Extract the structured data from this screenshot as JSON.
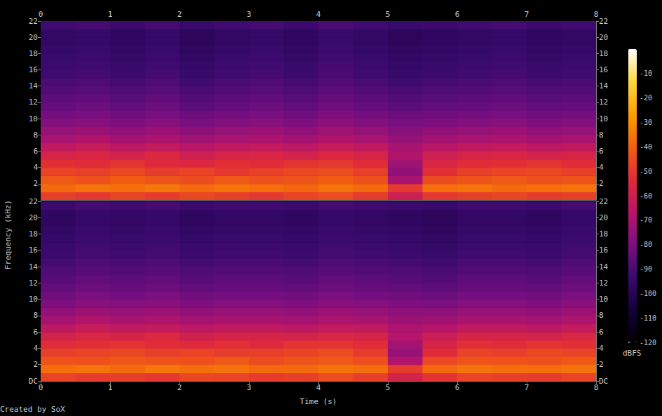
{
  "chart_data": {
    "type": "heatmap",
    "x_label": "Time (s)",
    "y_label": "Frequency (kHz)",
    "credit": "Created by SoX",
    "xlim": [
      0,
      8
    ],
    "xticks": [
      0,
      1,
      2,
      3,
      4,
      5,
      6,
      7,
      8
    ],
    "ylim": [
      0,
      22
    ],
    "time_bins": [
      0,
      0.5,
      1,
      1.5,
      2,
      2.5,
      3,
      3.5,
      4,
      4.5,
      5,
      5.5,
      6,
      6.5,
      7,
      7.5,
      8
    ],
    "freq_bins": [
      0,
      1,
      2,
      3,
      4,
      5,
      6,
      7,
      8,
      9,
      10,
      11,
      12,
      13,
      14,
      15,
      16,
      17,
      18,
      19,
      20,
      21,
      22
    ],
    "colorbar": {
      "label": "dBFS",
      "range": [
        -120,
        0
      ],
      "ticks": [
        -120,
        -110,
        -100,
        -90,
        -80,
        -70,
        -60,
        -50,
        -40,
        -30,
        -20,
        -10
      ]
    },
    "channels": [
      {
        "yticks": [
          2,
          4,
          6,
          8,
          10,
          12,
          14,
          16,
          18,
          20,
          22
        ],
        "cells": [
          [
            -48,
            -50,
            -47,
            -49,
            -46,
            -48,
            -50,
            -47,
            -45,
            -49,
            -60,
            -50,
            -48,
            -47,
            -49,
            -48
          ],
          [
            -38,
            -36,
            -37,
            -35,
            -38,
            -36,
            -37,
            -39,
            -36,
            -38,
            -50,
            -37,
            -36,
            -38,
            -37,
            -36
          ],
          [
            -42,
            -44,
            -41,
            -43,
            -45,
            -42,
            -44,
            -43,
            -41,
            -44,
            -70,
            -45,
            -43,
            -42,
            -44,
            -43
          ],
          [
            -47,
            -48,
            -46,
            -49,
            -47,
            -50,
            -48,
            -46,
            -45,
            -48,
            -75,
            -52,
            -48,
            -47,
            -46,
            -48
          ],
          [
            -52,
            -53,
            -51,
            -54,
            -55,
            -52,
            -53,
            -51,
            -50,
            -53,
            -72,
            -56,
            -53,
            -52,
            -51,
            -53
          ],
          [
            -57,
            -56,
            -58,
            -55,
            -60,
            -57,
            -56,
            -58,
            -55,
            -57,
            -68,
            -60,
            -57,
            -56,
            -58,
            -57
          ],
          [
            -64,
            -62,
            -65,
            -63,
            -66,
            -64,
            -63,
            -65,
            -62,
            -64,
            -70,
            -66,
            -64,
            -63,
            -65,
            -64
          ],
          [
            -70,
            -68,
            -71,
            -69,
            -72,
            -70,
            -69,
            -71,
            -68,
            -70,
            -74,
            -71,
            -70,
            -69,
            -71,
            -70
          ],
          [
            -74,
            -73,
            -75,
            -73,
            -76,
            -74,
            -73,
            -75,
            -72,
            -74,
            -77,
            -75,
            -74,
            -73,
            -75,
            -74
          ],
          [
            -78,
            -77,
            -79,
            -77,
            -80,
            -78,
            -77,
            -79,
            -76,
            -78,
            -80,
            -79,
            -78,
            -77,
            -79,
            -78
          ],
          [
            -81,
            -80,
            -82,
            -80,
            -83,
            -81,
            -80,
            -82,
            -79,
            -81,
            -83,
            -82,
            -81,
            -80,
            -82,
            -81
          ],
          [
            -84,
            -83,
            -85,
            -83,
            -86,
            -84,
            -83,
            -85,
            -82,
            -84,
            -86,
            -85,
            -84,
            -83,
            -85,
            -84
          ],
          [
            -86,
            -85,
            -87,
            -85,
            -88,
            -86,
            -85,
            -87,
            -84,
            -86,
            -88,
            -87,
            -86,
            -85,
            -87,
            -86
          ],
          [
            -88,
            -87,
            -89,
            -87,
            -90,
            -88,
            -87,
            -89,
            -86,
            -88,
            -90,
            -89,
            -88,
            -87,
            -89,
            -88
          ],
          [
            -90,
            -89,
            -91,
            -89,
            -92,
            -90,
            -89,
            -91,
            -88,
            -90,
            -92,
            -91,
            -90,
            -89,
            -91,
            -90
          ],
          [
            -92,
            -91,
            -93,
            -91,
            -94,
            -92,
            -91,
            -93,
            -90,
            -92,
            -94,
            -93,
            -92,
            -91,
            -93,
            -92
          ],
          [
            -93,
            -92,
            -94,
            -92,
            -95,
            -93,
            -92,
            -94,
            -91,
            -93,
            -95,
            -94,
            -93,
            -92,
            -94,
            -93
          ],
          [
            -94,
            -93,
            -95,
            -93,
            -96,
            -94,
            -93,
            -95,
            -92,
            -94,
            -96,
            -95,
            -94,
            -93,
            -95,
            -94
          ],
          [
            -95,
            -94,
            -96,
            -94,
            -97,
            -95,
            -94,
            -96,
            -93,
            -95,
            -97,
            -96,
            -95,
            -94,
            -96,
            -95
          ],
          [
            -96,
            -95,
            -97,
            -95,
            -98,
            -96,
            -95,
            -97,
            -94,
            -96,
            -98,
            -97,
            -96,
            -95,
            -97,
            -96
          ],
          [
            -96,
            -95,
            -97,
            -95,
            -98,
            -96,
            -95,
            -97,
            -94,
            -96,
            -98,
            -97,
            -96,
            -95,
            -97,
            -96
          ],
          [
            -92,
            -91,
            -93,
            -91,
            -94,
            -92,
            -91,
            -93,
            -90,
            -92,
            -94,
            -93,
            -92,
            -91,
            -93,
            -92
          ]
        ]
      },
      {
        "yticks": [
          {
            "value": 0,
            "label": "DC"
          },
          2,
          4,
          6,
          8,
          10,
          12,
          14,
          16,
          18,
          20,
          22
        ],
        "cells": [
          [
            -47,
            -49,
            -48,
            -50,
            -46,
            -47,
            -49,
            -48,
            -45,
            -48,
            -58,
            -51,
            -47,
            -48,
            -49,
            -47
          ],
          [
            -37,
            -36,
            -38,
            -35,
            -37,
            -36,
            -38,
            -38,
            -36,
            -37,
            -49,
            -38,
            -36,
            -37,
            -37,
            -36
          ],
          [
            -43,
            -44,
            -42,
            -43,
            -44,
            -42,
            -45,
            -43,
            -42,
            -44,
            -68,
            -46,
            -43,
            -43,
            -44,
            -42
          ],
          [
            -48,
            -47,
            -46,
            -48,
            -47,
            -49,
            -48,
            -47,
            -45,
            -49,
            -74,
            -53,
            -47,
            -48,
            -46,
            -47
          ],
          [
            -53,
            -52,
            -51,
            -53,
            -54,
            -52,
            -54,
            -51,
            -51,
            -53,
            -71,
            -57,
            -52,
            -53,
            -51,
            -52
          ],
          [
            -58,
            -56,
            -57,
            -55,
            -59,
            -57,
            -57,
            -58,
            -56,
            -57,
            -67,
            -61,
            -57,
            -57,
            -58,
            -56
          ],
          [
            -65,
            -62,
            -64,
            -63,
            -65,
            -64,
            -64,
            -65,
            -63,
            -64,
            -69,
            -67,
            -64,
            -64,
            -65,
            -63
          ],
          [
            -71,
            -68,
            -70,
            -69,
            -71,
            -70,
            -70,
            -71,
            -69,
            -70,
            -73,
            -72,
            -70,
            -70,
            -71,
            -69
          ],
          [
            -75,
            -73,
            -74,
            -73,
            -75,
            -74,
            -74,
            -75,
            -73,
            -74,
            -76,
            -76,
            -74,
            -74,
            -75,
            -73
          ],
          [
            -79,
            -77,
            -78,
            -77,
            -79,
            -78,
            -78,
            -79,
            -77,
            -78,
            -79,
            -80,
            -78,
            -78,
            -79,
            -77
          ],
          [
            -82,
            -80,
            -81,
            -80,
            -82,
            -81,
            -81,
            -82,
            -80,
            -81,
            -82,
            -83,
            -81,
            -81,
            -82,
            -80
          ],
          [
            -85,
            -83,
            -84,
            -83,
            -85,
            -84,
            -84,
            -85,
            -83,
            -84,
            -85,
            -86,
            -84,
            -84,
            -85,
            -83
          ],
          [
            -87,
            -85,
            -86,
            -85,
            -87,
            -86,
            -86,
            -87,
            -85,
            -86,
            -87,
            -88,
            -86,
            -86,
            -87,
            -85
          ],
          [
            -89,
            -87,
            -88,
            -87,
            -89,
            -88,
            -88,
            -89,
            -87,
            -88,
            -89,
            -90,
            -88,
            -88,
            -89,
            -87
          ],
          [
            -91,
            -89,
            -90,
            -89,
            -91,
            -90,
            -90,
            -91,
            -89,
            -90,
            -91,
            -92,
            -90,
            -90,
            -91,
            -89
          ],
          [
            -93,
            -91,
            -92,
            -91,
            -93,
            -92,
            -92,
            -93,
            -91,
            -92,
            -93,
            -94,
            -92,
            -92,
            -93,
            -91
          ],
          [
            -94,
            -92,
            -93,
            -92,
            -94,
            -93,
            -93,
            -94,
            -92,
            -93,
            -94,
            -95,
            -93,
            -93,
            -94,
            -92
          ],
          [
            -95,
            -93,
            -94,
            -93,
            -95,
            -94,
            -94,
            -95,
            -93,
            -94,
            -95,
            -96,
            -94,
            -94,
            -95,
            -93
          ],
          [
            -96,
            -94,
            -95,
            -94,
            -96,
            -95,
            -95,
            -96,
            -94,
            -95,
            -96,
            -97,
            -95,
            -95,
            -96,
            -94
          ],
          [
            -97,
            -95,
            -96,
            -95,
            -97,
            -96,
            -96,
            -97,
            -95,
            -96,
            -97,
            -98,
            -96,
            -96,
            -97,
            -95
          ],
          [
            -97,
            -95,
            -96,
            -95,
            -97,
            -96,
            -96,
            -97,
            -95,
            -96,
            -97,
            -98,
            -96,
            -96,
            -97,
            -95
          ],
          [
            -93,
            -91,
            -92,
            -91,
            -93,
            -92,
            -92,
            -93,
            -91,
            -92,
            -93,
            -94,
            -92,
            -92,
            -93,
            -91
          ]
        ]
      }
    ]
  }
}
